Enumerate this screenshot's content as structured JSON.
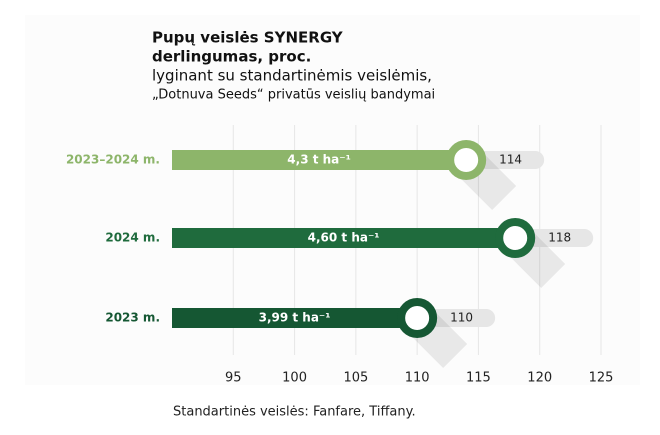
{
  "chart_data": {
    "type": "bar",
    "orientation": "horizontal",
    "title": [
      "Pupų veislės SYNERGY",
      "derlingumas, proc."
    ],
    "subtitle": [
      "lyginant su standartinėmis veislėmis,",
      "„Dotnuva Seeds“ privatūs veislių bandymai"
    ],
    "categories": [
      "2023–2024 m.",
      "2024 m.",
      "2023 m."
    ],
    "values": [
      114,
      118,
      110
    ],
    "bar_labels": [
      "4,3 t ha⁻¹",
      "4,60 t ha⁻¹",
      "3,99 t ha⁻¹"
    ],
    "colors": [
      "#8db56a",
      "#1f6b3d",
      "#155733"
    ],
    "xlim": [
      90,
      125
    ],
    "xticks": [
      95,
      100,
      105,
      110,
      115,
      120,
      125
    ],
    "grid": true,
    "footnote": "Standartinės veislės: Fanfare, Tiffany."
  }
}
